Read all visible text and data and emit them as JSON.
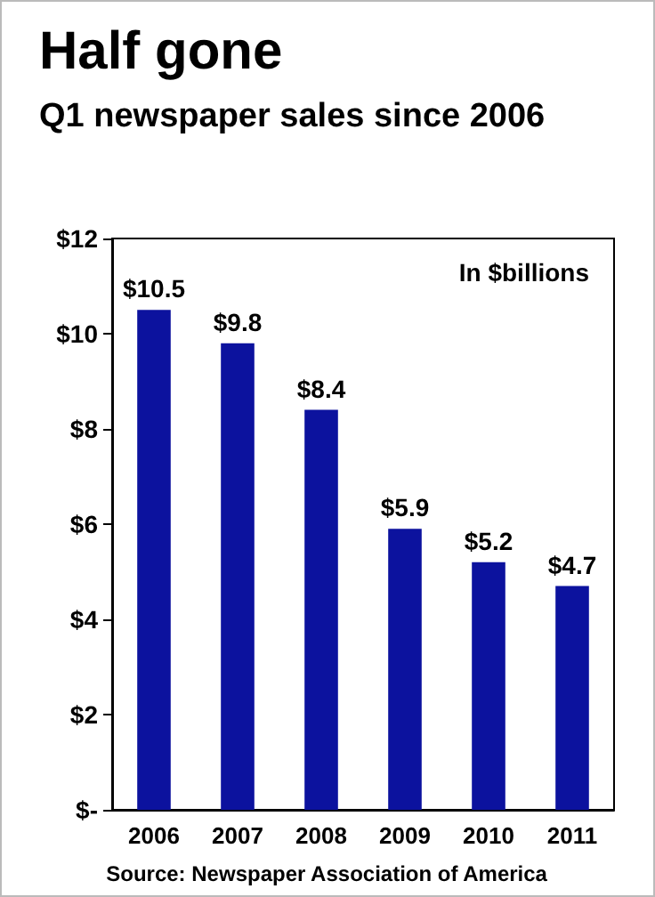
{
  "chart_data": {
    "type": "bar",
    "title": "Half gone",
    "subtitle": "Q1 newspaper sales since 2006",
    "categories": [
      "2006",
      "2007",
      "2008",
      "2009",
      "2010",
      "2011"
    ],
    "values": [
      10.5,
      9.8,
      8.4,
      5.9,
      5.2,
      4.7
    ],
    "value_labels": [
      "$10.5",
      "$9.8",
      "$8.4",
      "$5.9",
      "$5.2",
      "$4.7"
    ],
    "color": "#0c129e",
    "ylim": [
      0,
      12
    ],
    "yticks": [
      {
        "value": 0,
        "label": "$-"
      },
      {
        "value": 2,
        "label": "$2"
      },
      {
        "value": 4,
        "label": "$4"
      },
      {
        "value": 6,
        "label": "$6"
      },
      {
        "value": 8,
        "label": "$8"
      },
      {
        "value": 10,
        "label": "$10"
      },
      {
        "value": 12,
        "label": "$12"
      }
    ],
    "annotations": [
      "In $billions",
      "Source: Newspaper Association of America"
    ],
    "grid": false
  }
}
